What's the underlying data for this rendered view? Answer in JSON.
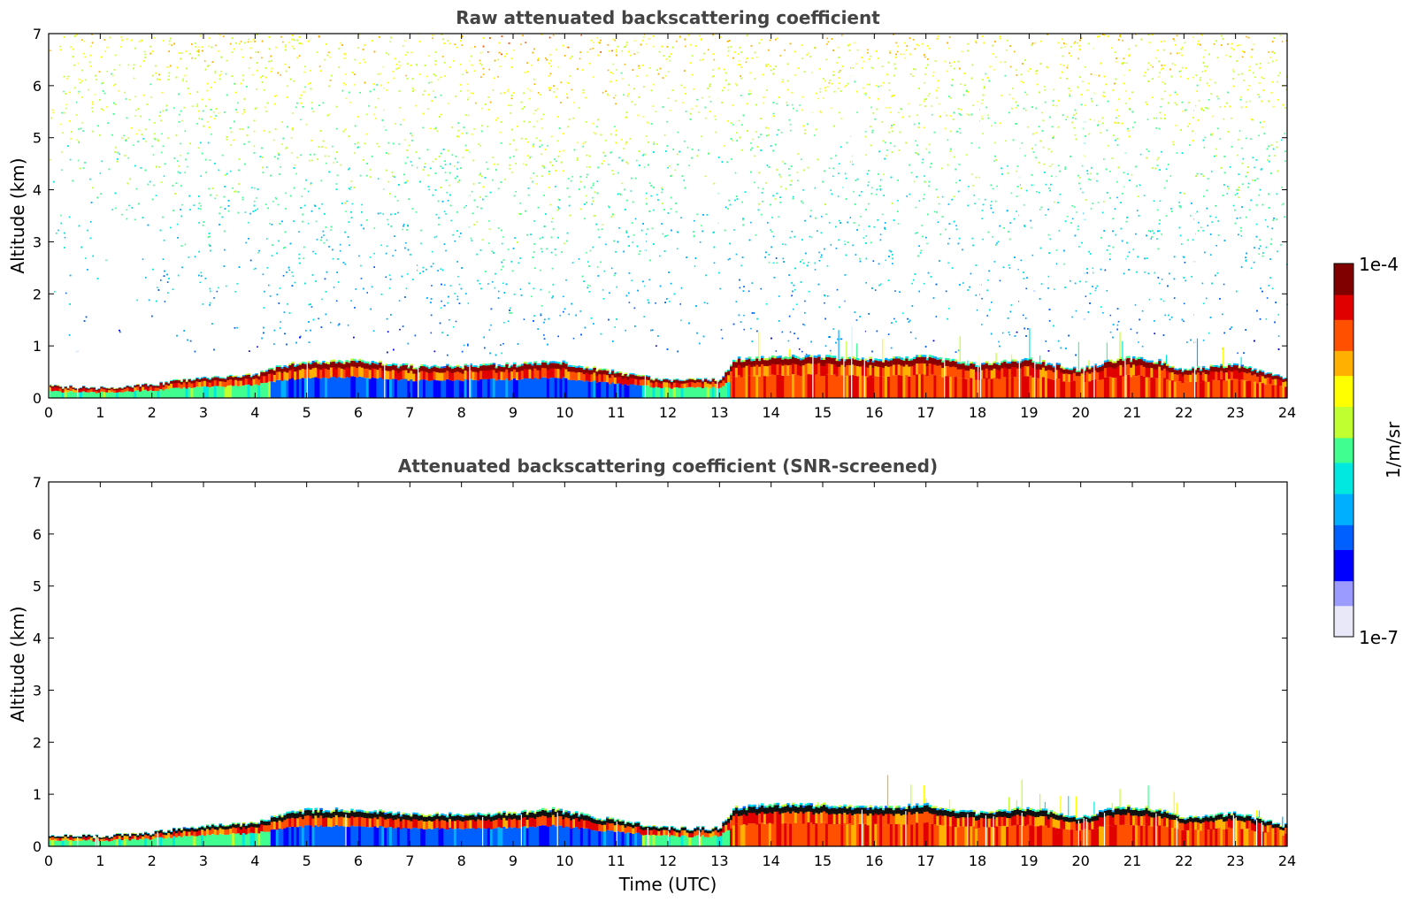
{
  "chart_data": [
    {
      "type": "heatmap",
      "title": "Raw attenuated backscattering coefficient",
      "xlabel": "",
      "ylabel": "Altitude (km)",
      "xlim": [
        0,
        24
      ],
      "ylim": [
        0,
        7
      ],
      "x_ticks": [
        "0",
        "1",
        "2",
        "3",
        "4",
        "5",
        "6",
        "7",
        "8",
        "9",
        "10",
        "11",
        "12",
        "13",
        "14",
        "15",
        "16",
        "17",
        "18",
        "19",
        "20",
        "21",
        "22",
        "23",
        "24"
      ],
      "y_ticks": [
        "0",
        "1",
        "2",
        "3",
        "4",
        "5",
        "6",
        "7"
      ],
      "noise": true,
      "boundary_layer_top_km": [
        [
          0,
          0.22
        ],
        [
          1,
          0.2
        ],
        [
          2,
          0.26
        ],
        [
          3,
          0.4
        ],
        [
          4,
          0.45
        ],
        [
          4.5,
          0.62
        ],
        [
          5,
          0.7
        ],
        [
          6,
          0.72
        ],
        [
          7,
          0.62
        ],
        [
          8,
          0.62
        ],
        [
          9,
          0.65
        ],
        [
          9.8,
          0.72
        ],
        [
          10.5,
          0.58
        ],
        [
          11,
          0.5
        ],
        [
          12,
          0.35
        ],
        [
          13,
          0.35
        ],
        [
          13.3,
          0.75
        ],
        [
          14,
          0.8
        ],
        [
          15,
          0.8
        ],
        [
          16,
          0.75
        ],
        [
          17,
          0.8
        ],
        [
          18,
          0.65
        ],
        [
          19,
          0.75
        ],
        [
          20,
          0.55
        ],
        [
          20.8,
          0.78
        ],
        [
          21.5,
          0.72
        ],
        [
          22,
          0.55
        ],
        [
          23,
          0.65
        ],
        [
          24,
          0.4
        ]
      ]
    },
    {
      "type": "heatmap",
      "title": "Attenuated backscattering coefficient (SNR-screened)",
      "xlabel": "Time (UTC)",
      "ylabel": "Altitude (km)",
      "xlim": [
        0,
        24
      ],
      "ylim": [
        0,
        7
      ],
      "x_ticks": [
        "0",
        "1",
        "2",
        "3",
        "4",
        "5",
        "6",
        "7",
        "8",
        "9",
        "10",
        "11",
        "12",
        "13",
        "14",
        "15",
        "16",
        "17",
        "18",
        "19",
        "20",
        "21",
        "22",
        "23",
        "24"
      ],
      "y_ticks": [
        "0",
        "1",
        "2",
        "3",
        "4",
        "5",
        "6",
        "7"
      ],
      "noise": false,
      "boundary_layer_top_km": [
        [
          0,
          0.22
        ],
        [
          1,
          0.2
        ],
        [
          2,
          0.26
        ],
        [
          3,
          0.4
        ],
        [
          4,
          0.45
        ],
        [
          4.5,
          0.62
        ],
        [
          5,
          0.7
        ],
        [
          6,
          0.72
        ],
        [
          7,
          0.62
        ],
        [
          8,
          0.62
        ],
        [
          9,
          0.65
        ],
        [
          9.8,
          0.72
        ],
        [
          10.5,
          0.58
        ],
        [
          11,
          0.5
        ],
        [
          12,
          0.35
        ],
        [
          13,
          0.35
        ],
        [
          13.3,
          0.75
        ],
        [
          14,
          0.8
        ],
        [
          15,
          0.8
        ],
        [
          16,
          0.75
        ],
        [
          17,
          0.8
        ],
        [
          18,
          0.65
        ],
        [
          19,
          0.75
        ],
        [
          20,
          0.55
        ],
        [
          20.8,
          0.78
        ],
        [
          21.5,
          0.72
        ],
        [
          22,
          0.55
        ],
        [
          23,
          0.65
        ],
        [
          24,
          0.4
        ]
      ]
    }
  ],
  "colorbar": {
    "max_label": "1e-4",
    "min_label": "1e-7",
    "unit": "1/m/sr",
    "colors": [
      "#e8e8f8",
      "#9a9aff",
      "#0000ff",
      "#0060ff",
      "#00b0ff",
      "#00e8e0",
      "#40ff90",
      "#c0ff30",
      "#ffff00",
      "#ffb000",
      "#ff5000",
      "#e00000",
      "#800000"
    ]
  }
}
